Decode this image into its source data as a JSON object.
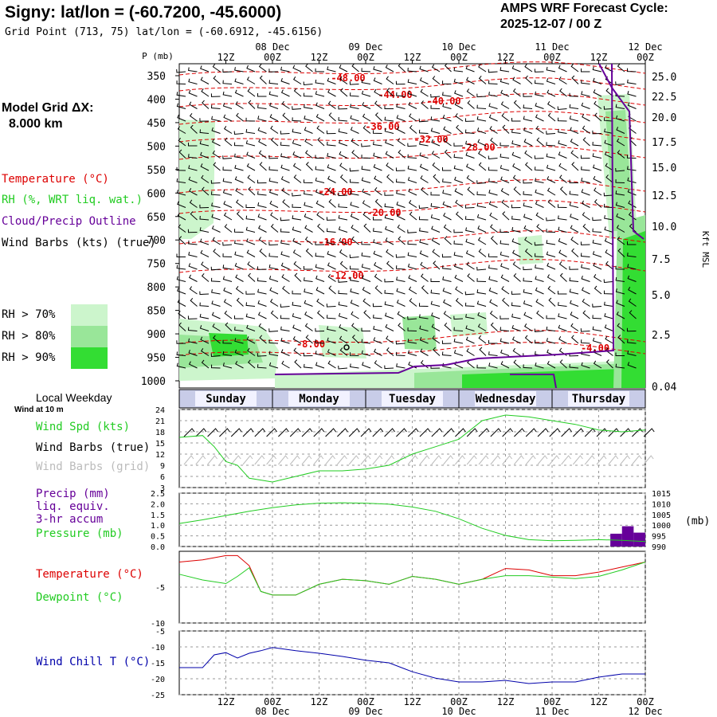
{
  "header": {
    "title": "Signy:  lat/lon = (-60.7200, -45.6000)",
    "grid_point": "Grid Point (713, 75) lat/lon = (-60.6912, -45.6156)",
    "cycle_label": "AMPS WRF Forecast Cycle:",
    "cycle_value": "2025-12-07 / 00  Z"
  },
  "sidebar": {
    "model_grid_line1": "Model Grid ΔX:",
    "model_grid_line2": "8.000 km",
    "legend_temperature": "Temperature (°C)",
    "legend_rh": "RH (%, WRT liq. wat.)",
    "legend_cloud": "Cloud/Precip Outline",
    "legend_wind": "Wind Barbs (kts) (true)",
    "rh_70": "RH > 70%",
    "rh_80": "RH > 80%",
    "rh_90": "RH > 90%",
    "local_weekday": "Local Weekday",
    "wind_at_10m": "Wind at 10 m",
    "wind_spd": "Wind Spd (kts)",
    "wind_barbs_true": "Wind Barbs (true)",
    "wind_barbs_grid": "Wind Barbs (grid)",
    "precip_1": "Precip (mm)",
    "precip_2": "liq. equiv.",
    "precip_3": "3-hr accum",
    "pressure": "Pressure (mb)",
    "temperature": "Temperature (°C)",
    "dewpoint": "Dewpoint (°C)",
    "wind_chill": "Wind Chill T (°C)"
  },
  "colors": {
    "temperature": "#dd0000",
    "rh": "#22cc22",
    "cloud": "#660099",
    "wind_chill": "#0000aa",
    "pressure": "#22cc22",
    "precip": "#660099",
    "rh70": "#ccf5cc",
    "rh80": "#99e699",
    "rh90": "#33dd33",
    "grid": "#999999"
  },
  "chart_data": {
    "type": "meteogram",
    "time_axis": {
      "top_hours": [
        "12Z",
        "00Z",
        "12Z",
        "00Z",
        "12Z",
        "00Z",
        "12Z",
        "00Z",
        "12Z",
        "00Z"
      ],
      "top_dates": [
        "08 Dec",
        "09 Dec",
        "10 Dec",
        "11 Dec",
        "12 Dec"
      ],
      "bottom_hours": [
        "12Z",
        "00Z",
        "12Z",
        "00Z",
        "12Z",
        "00Z",
        "12Z",
        "00Z",
        "12Z",
        "00Z"
      ],
      "bottom_dates": [
        "08 Dec",
        "09 Dec",
        "10 Dec",
        "11 Dec",
        "12 Dec"
      ],
      "weekdays": [
        "Sunday",
        "Monday",
        "Tuesday",
        "Wednesday",
        "Thursday"
      ],
      "p_mb_label": "P (mb)",
      "forecast_hours": [
        0,
        120
      ]
    },
    "cross_section": {
      "pressure_levels": [
        "350",
        "400",
        "450",
        "500",
        "550",
        "600",
        "650",
        "700",
        "750",
        "800",
        "850",
        "900",
        "950",
        "1000"
      ],
      "height_ticks": [
        "25.0",
        "22.5",
        "20.0",
        "17.5",
        "15.0",
        "12.5",
        "10.0",
        "7.5",
        "5.0",
        "2.5",
        "0.04"
      ],
      "height_label": "Kft MSL",
      "temperature_labels": [
        "-48.00",
        "-44.00",
        "-40.00",
        "-36.00",
        "-32.00",
        "-28.00",
        "-24.00",
        "-20.00",
        "-16.00",
        "-12.00",
        "-8.00",
        "-4.00"
      ]
    },
    "wind_speed": {
      "yticks": [
        "24",
        "21",
        "18",
        "15",
        "12",
        "9",
        "6",
        "3"
      ],
      "ylim": [
        3,
        24
      ],
      "hours": [
        0,
        6,
        9,
        12,
        15,
        18,
        24,
        30,
        36,
        42,
        48,
        54,
        60,
        66,
        72,
        78,
        84,
        90,
        96,
        102,
        108,
        114,
        120
      ],
      "values": [
        16.5,
        17,
        14,
        10,
        9,
        5.5,
        4.5,
        6,
        7.5,
        7.5,
        8,
        9,
        12,
        14,
        16,
        21,
        22.5,
        22,
        21,
        20,
        18.5,
        18,
        18.5
      ]
    },
    "pressure": {
      "yticks": [
        "1015",
        "1010",
        "1005",
        "1000",
        "995",
        "990"
      ],
      "ylim": [
        990,
        1015
      ],
      "hours": [
        0,
        6,
        12,
        18,
        24,
        30,
        36,
        42,
        48,
        54,
        60,
        66,
        72,
        78,
        84,
        90,
        96,
        102,
        108,
        114,
        120
      ],
      "values": [
        1000.8,
        1002.5,
        1004.5,
        1006.5,
        1008.2,
        1009.5,
        1010.3,
        1010.5,
        1010.3,
        1009.8,
        1008.5,
        1006.5,
        1003.0,
        998.5,
        995.2,
        993.2,
        992.7,
        992.9,
        993.2,
        992.9,
        992.3
      ]
    },
    "precip": {
      "yticks": [
        "2.5",
        "2.0",
        "1.5",
        "1.0",
        "0.5",
        "0.0"
      ],
      "ylim": [
        0,
        2.5
      ],
      "bars": [
        {
          "hour_start": 111,
          "hour_end": 114,
          "value": 0.6
        },
        {
          "hour_start": 114,
          "hour_end": 117,
          "value": 0.95
        },
        {
          "hour_start": 117,
          "hour_end": 120,
          "value": 0.65
        }
      ]
    },
    "temperature": {
      "ytick_labels": [
        "-5",
        "-10"
      ],
      "ytick_values": [
        -5,
        -10
      ],
      "ylim": [
        -10,
        0
      ],
      "hours": [
        0,
        6,
        12,
        15,
        18,
        21,
        24,
        30,
        36,
        42,
        48,
        54,
        60,
        66,
        72,
        78,
        84,
        90,
        96,
        102,
        108,
        114,
        120
      ],
      "temperature": [
        -1.5,
        -1.2,
        -0.6,
        -0.6,
        -2.0,
        -5.6,
        -6.1,
        -6.1,
        -4.6,
        -3.9,
        -4.1,
        -4.6,
        -3.5,
        -3.9,
        -4.6,
        -3.9,
        -2.4,
        -2.6,
        -3.4,
        -3.4,
        -2.9,
        -2.2,
        -1.5
      ],
      "dewpoint": [
        -3.2,
        -4.0,
        -4.5,
        -3.5,
        -2.3,
        -5.6,
        -6.1,
        -6.1,
        -4.6,
        -3.9,
        -4.1,
        -4.6,
        -3.5,
        -3.9,
        -4.6,
        -3.9,
        -3.4,
        -3.4,
        -3.6,
        -3.8,
        -3.5,
        -2.6,
        -1.5
      ]
    },
    "wind_chill": {
      "yticks": [
        "-5",
        "-10",
        "-15",
        "-20",
        "-25"
      ],
      "ylim": [
        -25,
        -5
      ],
      "hours": [
        0,
        6,
        9,
        12,
        15,
        18,
        21,
        24,
        30,
        36,
        42,
        48,
        54,
        60,
        66,
        72,
        78,
        84,
        90,
        96,
        102,
        108,
        114,
        120
      ],
      "values": [
        -16.5,
        -16.5,
        -12.5,
        -11.8,
        -13.5,
        -12.0,
        -11.2,
        -10.2,
        -11.2,
        -12.0,
        -13.0,
        -14.2,
        -15.0,
        -17.8,
        -19.8,
        -21.0,
        -21.0,
        -20.5,
        -21.5,
        -21.0,
        -21.0,
        -19.5,
        -18.5,
        -18.5
      ]
    }
  }
}
